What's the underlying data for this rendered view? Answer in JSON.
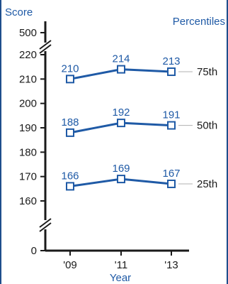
{
  "chart_data": {
    "type": "line",
    "y_axis_label": "Score",
    "x_axis_label": "Year",
    "legend_title": "Percentiles",
    "categories": [
      "'09",
      "'11",
      "'13"
    ],
    "y_ticks": [
      "0",
      "160",
      "170",
      "180",
      "190",
      "200",
      "210",
      "220",
      "500"
    ],
    "ylim": [
      160,
      220
    ],
    "y_axis_breaks": true,
    "grid": false,
    "series": [
      {
        "name": "75th",
        "values": [
          210,
          214,
          213
        ]
      },
      {
        "name": "50th",
        "values": [
          188,
          192,
          191
        ]
      },
      {
        "name": "25th",
        "values": [
          166,
          169,
          167
        ]
      }
    ]
  },
  "colors": {
    "line": "#1f5aa6",
    "axis": "#1a1a1a",
    "tick_label": "#1f5aa6",
    "border": "#1f4e8c",
    "reference_line": "#b0b0b0"
  },
  "icons": {
    "axis_break": "double-slash-break-icon",
    "marker": "hollow-square-marker"
  }
}
